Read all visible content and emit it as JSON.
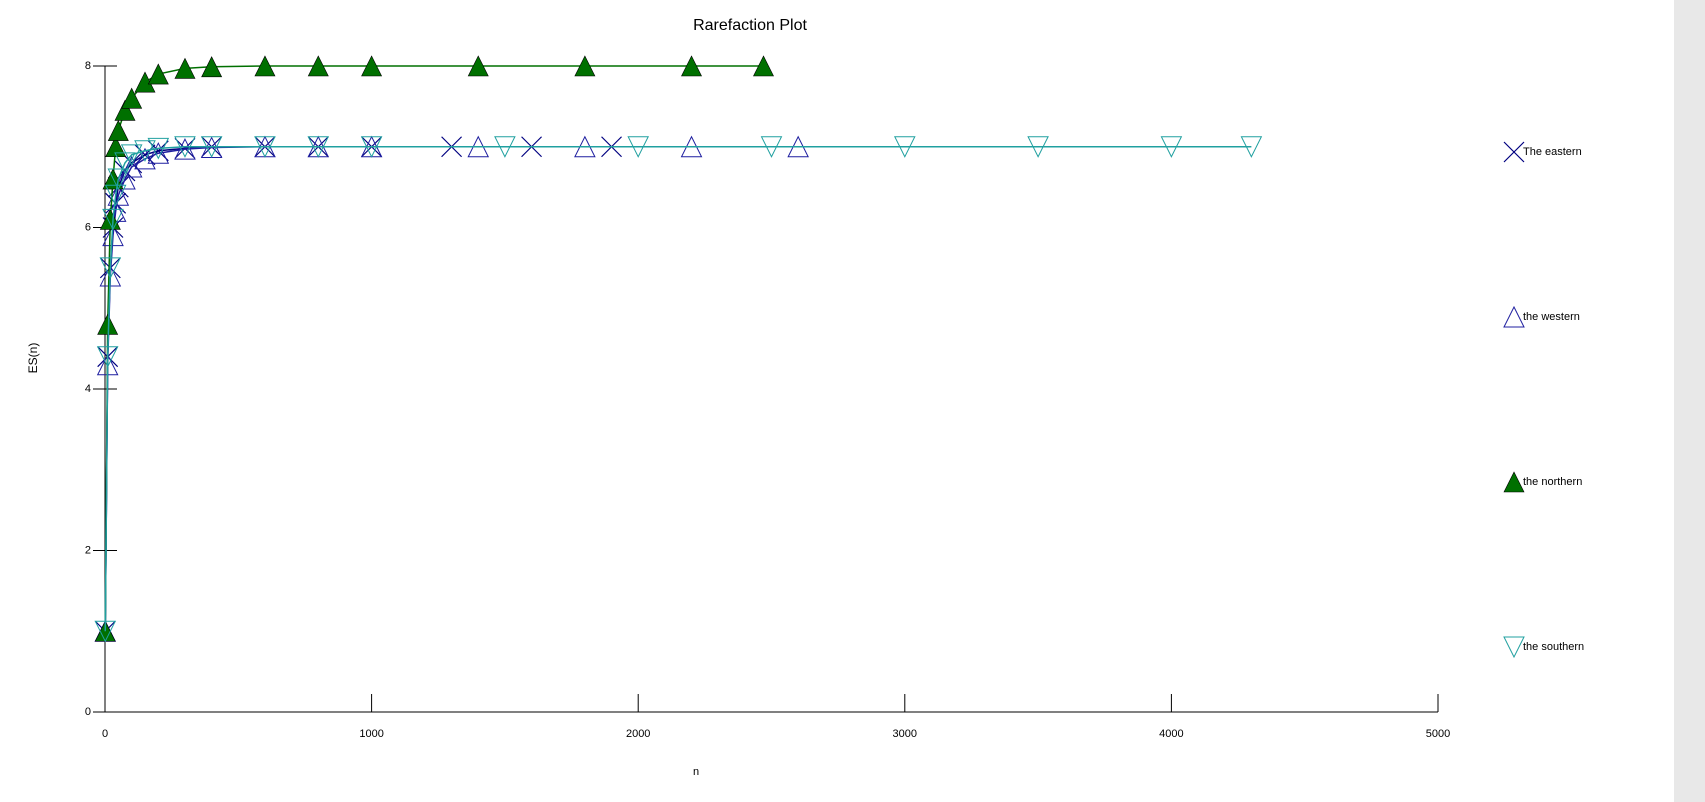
{
  "chart_data": {
    "type": "line",
    "title": "Rarefaction Plot",
    "x_label": "n",
    "y_label": "ES(n)",
    "xlim": [
      0,
      5000
    ],
    "ylim": [
      0,
      8
    ],
    "xticks": [
      0,
      1000,
      2000,
      3000,
      4000,
      5000
    ],
    "yticks": [
      0,
      2,
      4,
      6,
      8
    ],
    "legend": "right",
    "series": [
      {
        "name": "The eastern",
        "color": "#000080",
        "marker": "x",
        "x": [
          1,
          10,
          20,
          30,
          40,
          50,
          75,
          100,
          150,
          200,
          300,
          400,
          600,
          800,
          1000,
          1300,
          1600,
          1900
        ],
        "values": [
          1,
          4.4,
          5.5,
          6.0,
          6.3,
          6.5,
          6.7,
          6.8,
          6.9,
          6.95,
          6.98,
          7,
          7,
          7,
          7,
          7,
          7,
          7
        ]
      },
      {
        "name": "the western",
        "color": "#1f1fa0",
        "marker": "triangle-open",
        "x": [
          1,
          10,
          20,
          30,
          40,
          50,
          75,
          100,
          150,
          200,
          300,
          400,
          600,
          800,
          1000,
          1400,
          1800,
          2200,
          2600
        ],
        "values": [
          1,
          4.3,
          5.4,
          5.9,
          6.2,
          6.4,
          6.6,
          6.75,
          6.85,
          6.92,
          6.97,
          6.99,
          7,
          7,
          7,
          7,
          7,
          7,
          7
        ]
      },
      {
        "name": "the northern",
        "color": "#007000",
        "marker": "triangle-filled",
        "x": [
          1,
          10,
          20,
          30,
          40,
          50,
          75,
          100,
          150,
          200,
          300,
          400,
          600,
          800,
          1000,
          1400,
          1800,
          2200,
          2470
        ],
        "values": [
          1,
          4.8,
          6.1,
          6.6,
          7.0,
          7.2,
          7.45,
          7.6,
          7.8,
          7.9,
          7.97,
          7.99,
          8,
          8,
          8,
          8,
          8,
          8,
          8
        ]
      },
      {
        "name": "the southern",
        "color": "#20a0a0",
        "marker": "triangle-down-open",
        "x": [
          1,
          10,
          20,
          30,
          40,
          50,
          75,
          100,
          150,
          200,
          300,
          400,
          600,
          800,
          1000,
          1500,
          2000,
          2500,
          3000,
          3500,
          4000,
          4300
        ],
        "values": [
          1,
          4.4,
          5.5,
          6.1,
          6.4,
          6.6,
          6.8,
          6.9,
          6.95,
          6.98,
          7,
          7,
          7,
          7,
          7,
          7,
          7,
          7,
          7,
          7,
          7,
          7
        ]
      }
    ]
  }
}
